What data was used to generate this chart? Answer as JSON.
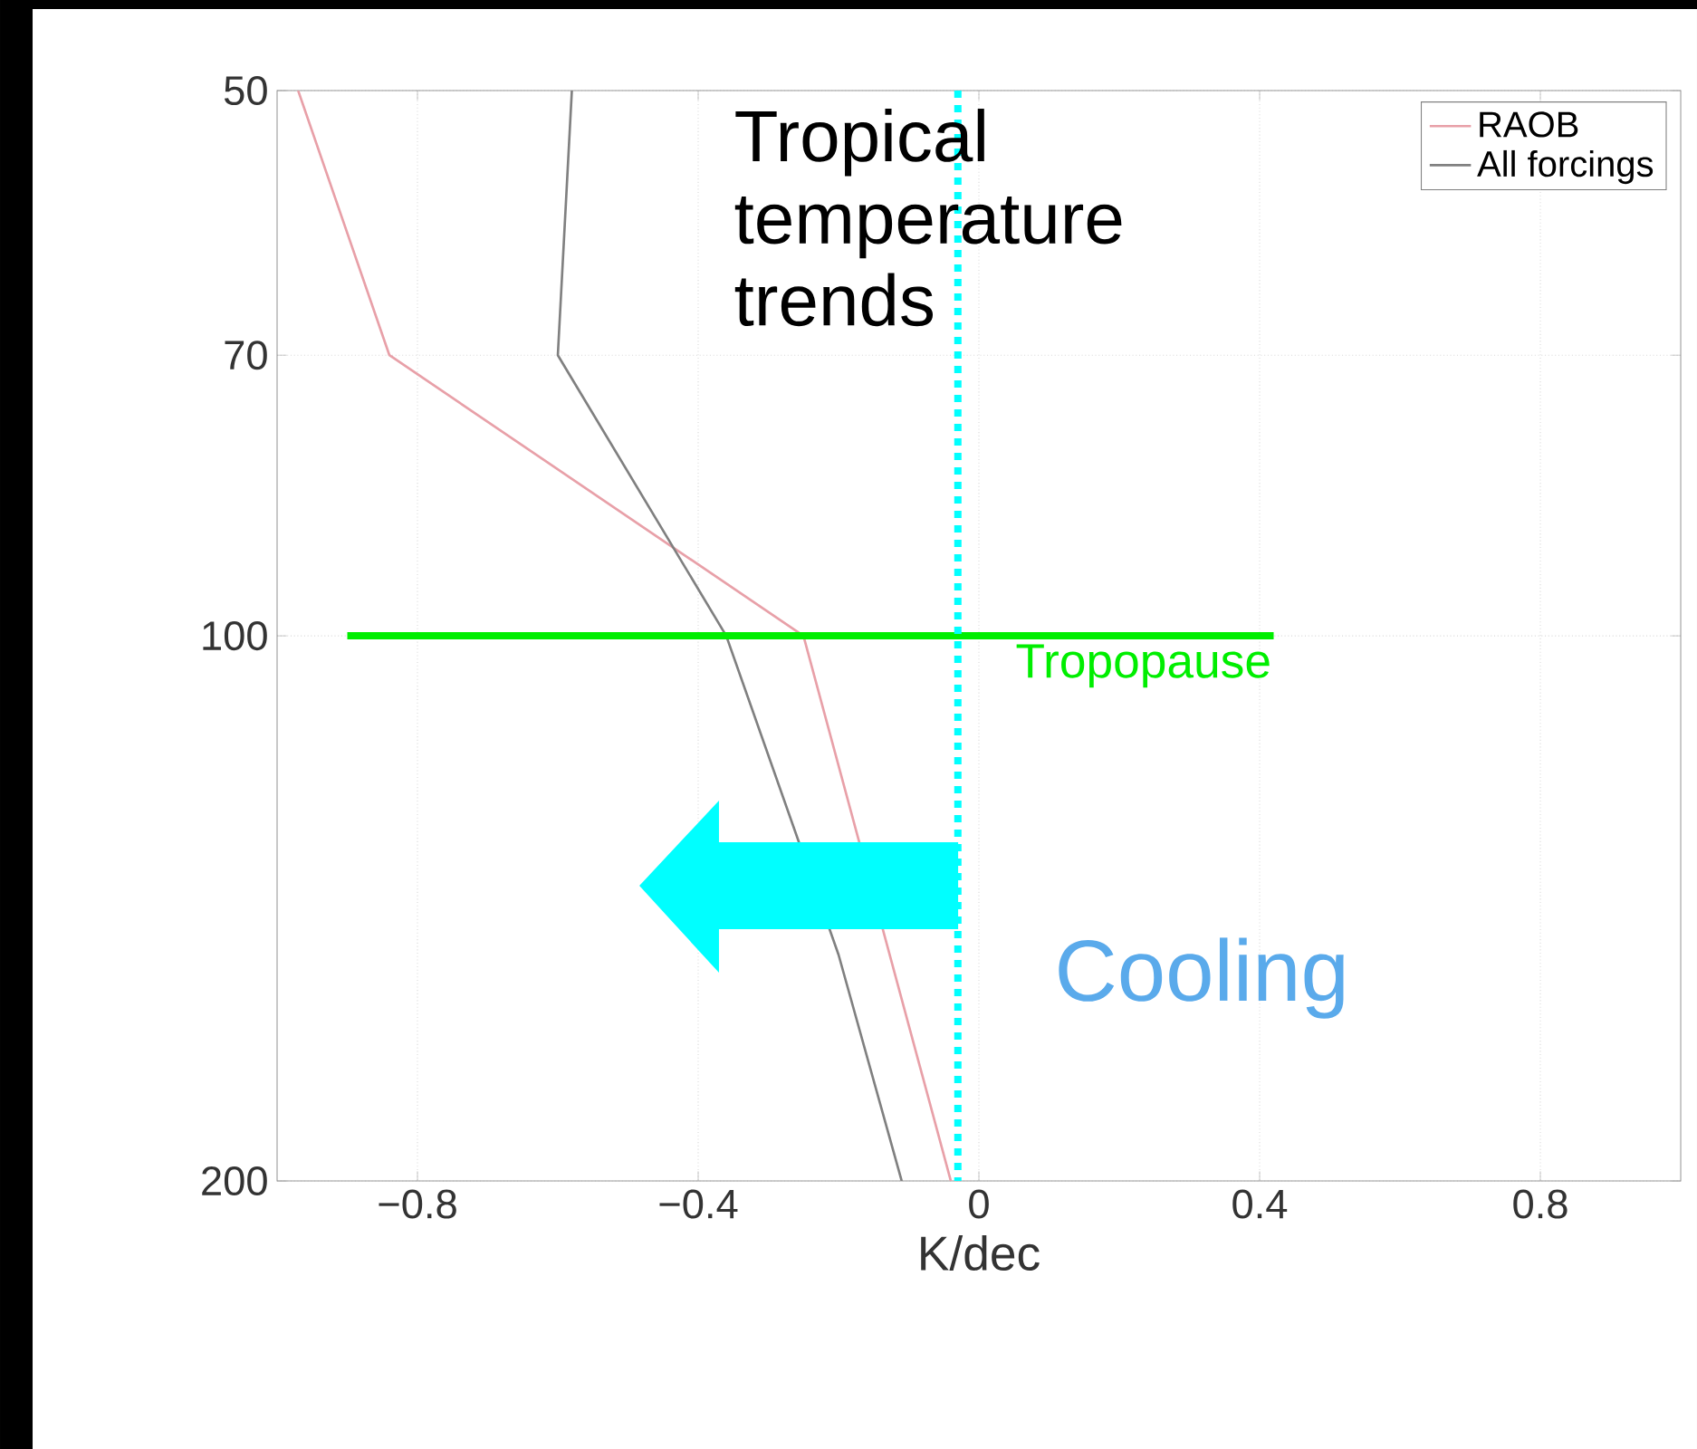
{
  "chart_data": {
    "type": "line",
    "xlabel": "K/dec",
    "log": "y",
    "xlim": [
      -1,
      1
    ],
    "ylim": [
      200,
      50
    ],
    "xticks": [
      {
        "value": -0.8,
        "label": "−0.8"
      },
      {
        "value": -0.4,
        "label": "−0.4"
      },
      0,
      {
        "value": 0.4,
        "label": "0.4"
      },
      {
        "value": 0.8,
        "label": "0.8"
      }
    ],
    "yticks": [
      50,
      70,
      100,
      200
    ],
    "grid": true,
    "legend": "top right",
    "series": [
      {
        "name": "RAOB",
        "color": "#e8a0a8",
        "x": [
          -0.97,
          -0.84,
          -0.25,
          -0.04
        ],
        "values": [
          50,
          70,
          100,
          200
        ]
      },
      {
        "name": "All forcings",
        "color": "#808080",
        "x": [
          -0.58,
          -0.6,
          -0.36,
          -0.2,
          -0.11
        ],
        "values": [
          50,
          70,
          100,
          150,
          200
        ]
      }
    ],
    "ref_lines": [
      {
        "axis": "y",
        "value": 100,
        "label": "Tropopause",
        "color": "#00ee00"
      },
      {
        "axis": "x",
        "value": -0.03,
        "color": "#00ffff",
        "line_style": "dotted"
      }
    ],
    "annotations": [
      "Tropical temperature trends",
      "Cooling"
    ]
  }
}
